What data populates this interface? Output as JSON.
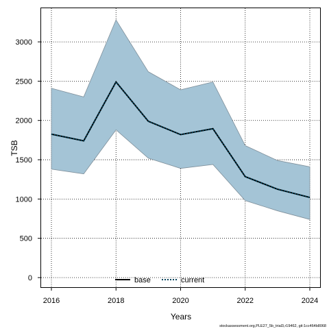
{
  "chart_data": {
    "type": "area",
    "xlabel": "Years",
    "ylabel": "TSB",
    "x": [
      2016,
      2017,
      2018,
      2019,
      2020,
      2021,
      2022,
      2023,
      2024
    ],
    "xlim": [
      2016,
      2024
    ],
    "ylim": [
      0,
      3300
    ],
    "x_ticks": [
      2016,
      2018,
      2020,
      2022,
      2024
    ],
    "y_ticks": [
      0,
      500,
      1000,
      1500,
      2000,
      2500,
      3000
    ],
    "band": {
      "upper": [
        2410,
        2300,
        3280,
        2620,
        2390,
        2490,
        1680,
        1490,
        1410
      ],
      "lower": [
        1380,
        1320,
        1880,
        1520,
        1390,
        1440,
        980,
        850,
        740
      ],
      "color": "#a4c4d6"
    },
    "series": [
      {
        "name": "base",
        "values": [
          1825,
          1740,
          2490,
          1990,
          1820,
          1895,
          1285,
          1125,
          1020
        ],
        "color": "#000000",
        "dash": "solid"
      },
      {
        "name": "current",
        "values": [
          1825,
          1740,
          2490,
          1990,
          1820,
          1895,
          1285,
          1125,
          1020
        ],
        "color": "#00415a",
        "dash": "dotted"
      }
    ],
    "grid": true,
    "legend_position": "bottom-center"
  },
  "footnote": "stockassessment.org,PLE27_5b_trial3,r19462, git:1cc464b8068"
}
